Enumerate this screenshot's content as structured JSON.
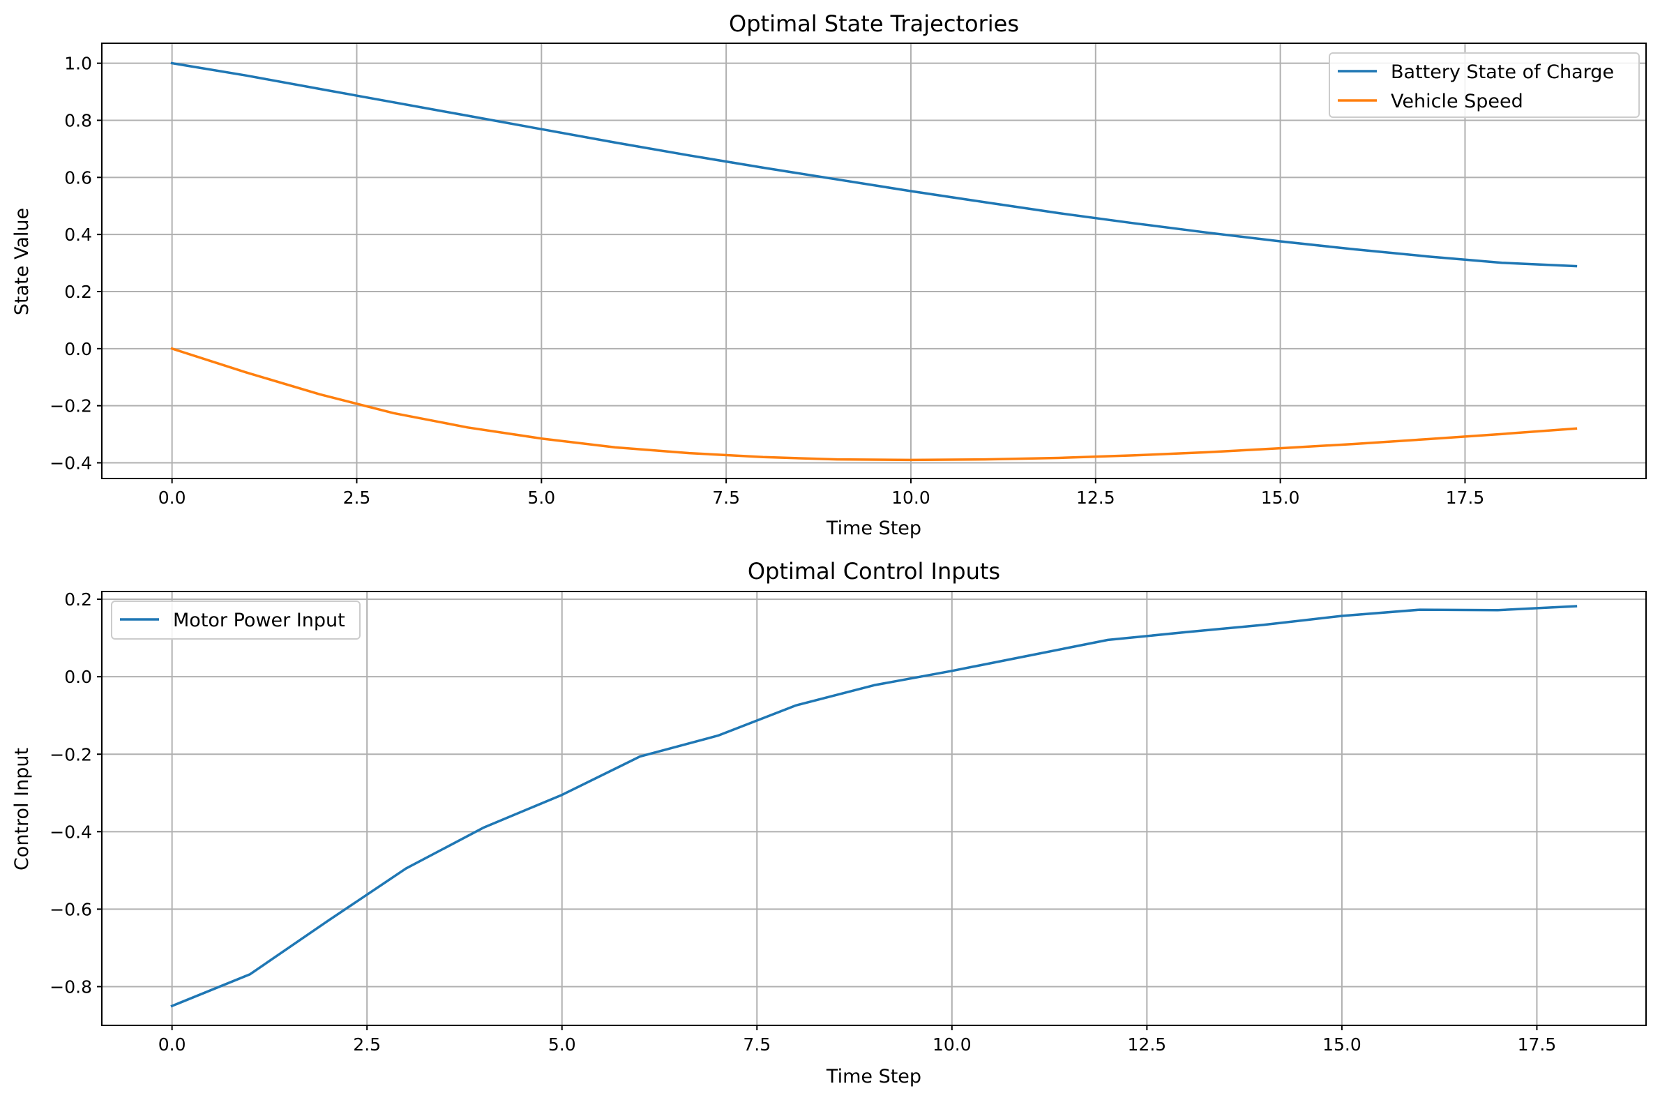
{
  "chart_data": [
    {
      "type": "line",
      "title": "Optimal State Trajectories",
      "xlabel": "Time Step",
      "ylabel": "State Value",
      "xlim": [
        -0.95,
        19.95
      ],
      "ylim": [
        -0.455,
        1.07
      ],
      "xticks": [
        0,
        2.5,
        5,
        7.5,
        10,
        12.5,
        15,
        17.5
      ],
      "xtick_labels": [
        "0.0",
        "2.5",
        "5.0",
        "7.5",
        "10.0",
        "12.5",
        "15.0",
        "17.5"
      ],
      "yticks": [
        1.0,
        0.8,
        0.6,
        0.4,
        0.2,
        0.0,
        -0.2,
        -0.4
      ],
      "ytick_labels": [
        "1.0",
        "0.8",
        "0.6",
        "0.4",
        "0.2",
        "0.0",
        "−0.2",
        "−0.4"
      ],
      "grid": true,
      "legend_position": "top-right",
      "x": [
        0,
        1,
        2,
        3,
        4,
        5,
        6,
        7,
        8,
        9,
        10,
        11,
        12,
        13,
        14,
        15,
        16,
        17,
        18,
        19
      ],
      "series": [
        {
          "name": "Battery State of Charge",
          "color": "#1f77b4",
          "values": [
            1.0,
            0.957,
            0.91,
            0.863,
            0.816,
            0.769,
            0.722,
            0.677,
            0.634,
            0.593,
            0.552,
            0.513,
            0.475,
            0.44,
            0.407,
            0.376,
            0.348,
            0.323,
            0.301,
            0.289
          ]
        },
        {
          "name": "Vehicle Speed",
          "color": "#ff7f0e",
          "values": [
            0.0,
            -0.083,
            -0.16,
            -0.226,
            -0.276,
            -0.315,
            -0.346,
            -0.366,
            -0.38,
            -0.388,
            -0.39,
            -0.388,
            -0.383,
            -0.374,
            -0.363,
            -0.349,
            -0.334,
            -0.317,
            -0.299,
            -0.28
          ]
        }
      ]
    },
    {
      "type": "line",
      "title": "Optimal Control Inputs",
      "xlabel": "Time Step",
      "ylabel": "Control Input",
      "xlim": [
        -0.9,
        18.9
      ],
      "ylim": [
        -0.9,
        0.22
      ],
      "xticks": [
        0,
        2.5,
        5,
        7.5,
        10,
        12.5,
        15,
        17.5
      ],
      "xtick_labels": [
        "0.0",
        "2.5",
        "5.0",
        "7.5",
        "10.0",
        "12.5",
        "15.0",
        "17.5"
      ],
      "yticks": [
        0.2,
        0.0,
        -0.2,
        -0.4,
        -0.6,
        -0.8
      ],
      "ytick_labels": [
        "0.2",
        "0.0",
        "−0.2",
        "−0.4",
        "−0.6",
        "−0.8"
      ],
      "grid": true,
      "legend_position": "top-left",
      "x": [
        0,
        1,
        2,
        3,
        4,
        5,
        6,
        7,
        8,
        9,
        10,
        11,
        12,
        13,
        14,
        15,
        16,
        17,
        18
      ],
      "series": [
        {
          "name": "Motor Power Input",
          "color": "#1f77b4",
          "values": [
            -0.85,
            -0.768,
            -0.63,
            -0.495,
            -0.389,
            -0.305,
            -0.206,
            -0.152,
            -0.074,
            -0.022,
            0.015,
            0.055,
            0.095,
            0.115,
            0.134,
            0.157,
            0.173,
            0.172,
            0.182
          ]
        }
      ]
    }
  ]
}
